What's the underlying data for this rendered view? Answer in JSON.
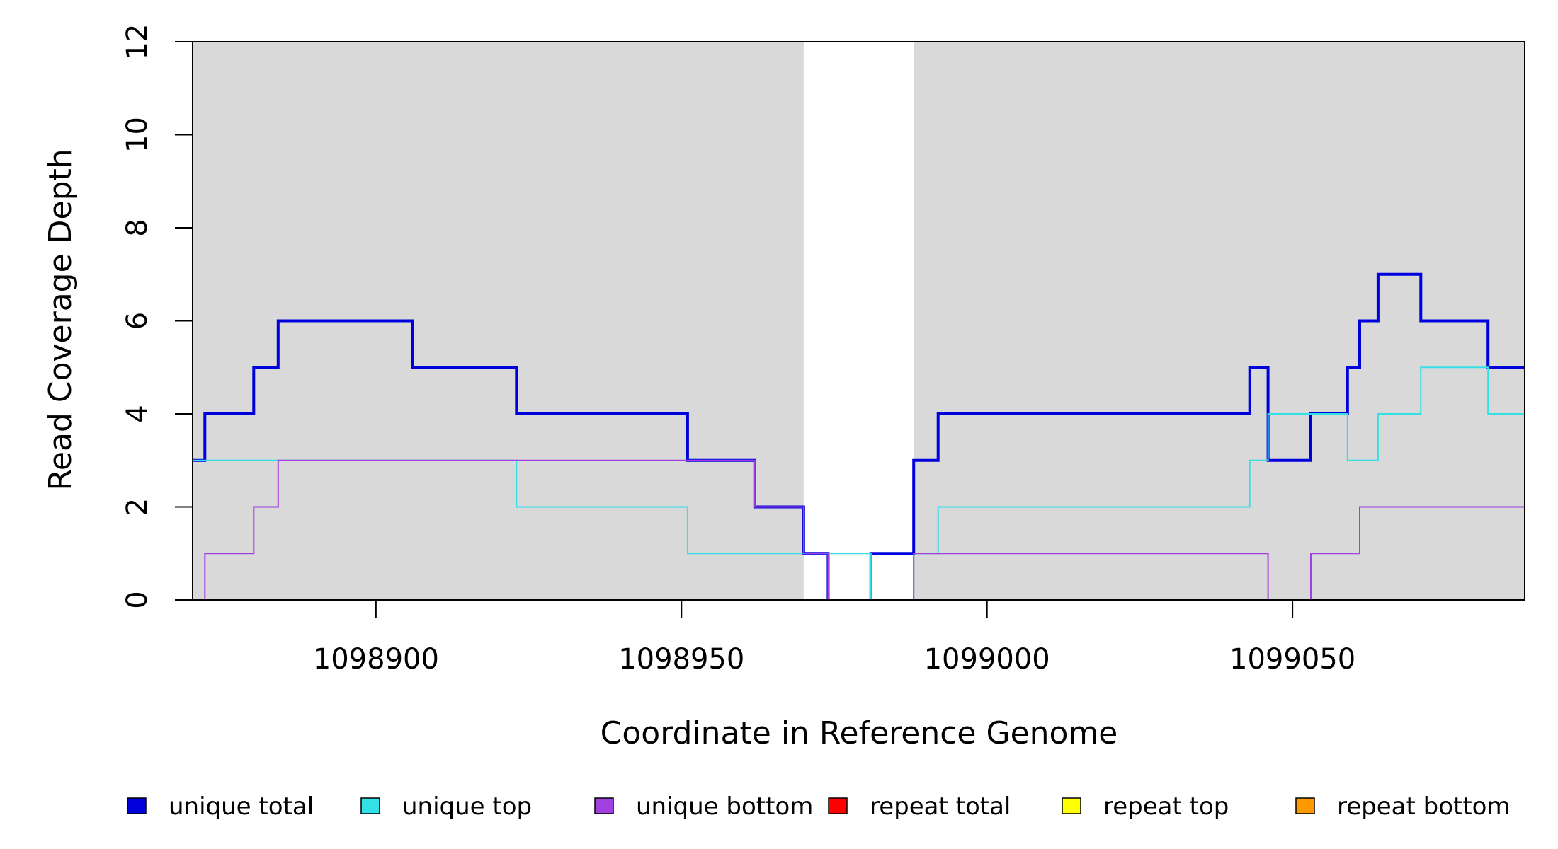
{
  "chart_data": {
    "type": "line",
    "step": "post",
    "xlabel": "Coordinate in Reference Genome",
    "ylabel": "Read Coverage Depth",
    "xlim": [
      1098870,
      1099088
    ],
    "ylim": [
      0,
      12
    ],
    "x_ticks": [
      1098900,
      1098950,
      1099000,
      1099050
    ],
    "x_tick_labels": [
      "1098900",
      "1098950",
      "1099000",
      "1099050"
    ],
    "y_ticks": [
      0,
      2,
      4,
      6,
      8,
      10,
      12
    ],
    "y_tick_labels": [
      "0",
      "2",
      "4",
      "6",
      "8",
      "10",
      "12"
    ],
    "highlight_regions": [
      {
        "x0": 1098870,
        "x1": 1098970,
        "color": "#d9d9d9"
      },
      {
        "x0": 1098988,
        "x1": 1099088,
        "color": "#d9d9d9"
      }
    ],
    "legend_position": "bottom",
    "series": [
      {
        "name": "unique total",
        "color": "#0000dd",
        "width": 4,
        "x": [
          1098870,
          1098872,
          1098880,
          1098884,
          1098906,
          1098923,
          1098951,
          1098962,
          1098970,
          1098974,
          1098981,
          1098988,
          1098992,
          1099043,
          1099046,
          1099053,
          1099059,
          1099061,
          1099064,
          1099071,
          1099082,
          1099088
        ],
        "y": [
          3,
          4,
          5,
          6,
          5,
          4,
          3,
          2,
          1,
          0,
          1,
          3,
          4,
          5,
          3,
          4,
          5,
          6,
          7,
          6,
          5,
          5
        ]
      },
      {
        "name": "unique top",
        "color": "#33e0e6",
        "width": 2,
        "x": [
          1098870,
          1098906,
          1098923,
          1098951,
          1098981,
          1098988,
          1098992,
          1099043,
          1099046,
          1099059,
          1099064,
          1099071,
          1099082,
          1099088
        ],
        "y": [
          3,
          3,
          2,
          1,
          0,
          1,
          2,
          3,
          4,
          3,
          4,
          5,
          4,
          3
        ]
      },
      {
        "name": "unique bottom",
        "color": "#a040e0",
        "width": 2,
        "x": [
          1098870,
          1098872,
          1098880,
          1098884,
          1098962,
          1098970,
          1098974,
          1098988,
          1099046,
          1099053,
          1099061,
          1099088
        ],
        "y": [
          0,
          1,
          2,
          3,
          2,
          1,
          0,
          1,
          0,
          1,
          2,
          2
        ]
      },
      {
        "name": "repeat total",
        "color": "#ff0000",
        "width": 2,
        "x": [
          1098870,
          1099088
        ],
        "y": [
          0,
          0
        ]
      },
      {
        "name": "repeat top",
        "color": "#ffff00",
        "width": 2,
        "x": [
          1098870,
          1099088
        ],
        "y": [
          0,
          0
        ]
      },
      {
        "name": "repeat bottom",
        "color": "#ff9900",
        "width": 3,
        "x": [
          1098870,
          1099088
        ],
        "y": [
          0,
          0
        ]
      }
    ]
  }
}
